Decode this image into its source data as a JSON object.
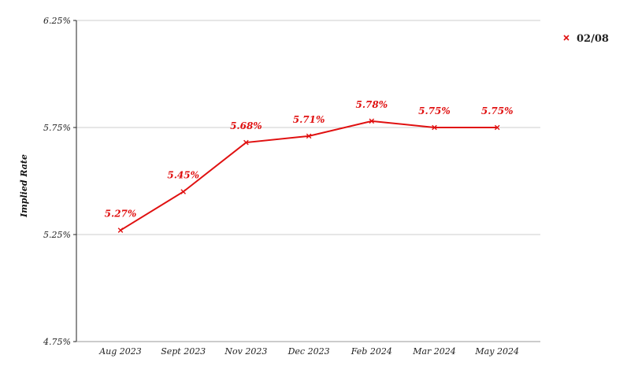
{
  "chart_data": {
    "type": "line",
    "title": "",
    "xlabel": "",
    "ylabel": "Implied Rate",
    "categories": [
      "Aug 2023",
      "Sept 2023",
      "Nov 2023",
      "Dec 2023",
      "Feb 2024",
      "Mar 2024",
      "May 2024"
    ],
    "series": [
      {
        "name": "02/08",
        "values": [
          5.27,
          5.45,
          5.68,
          5.71,
          5.78,
          5.75,
          5.75
        ],
        "labels": [
          "5.27%",
          "5.45%",
          "5.68%",
          "5.71%",
          "5.78%",
          "5.75%",
          "5.75%"
        ],
        "color": "#e01010",
        "marker": "x"
      }
    ],
    "ylim": [
      4.75,
      6.25
    ],
    "yticks": [
      4.75,
      5.25,
      5.75,
      6.25
    ],
    "ytick_labels": [
      "4.75%",
      "5.25%",
      "5.75%",
      "6.25%"
    ],
    "grid": true,
    "legend_position": "top-right"
  }
}
